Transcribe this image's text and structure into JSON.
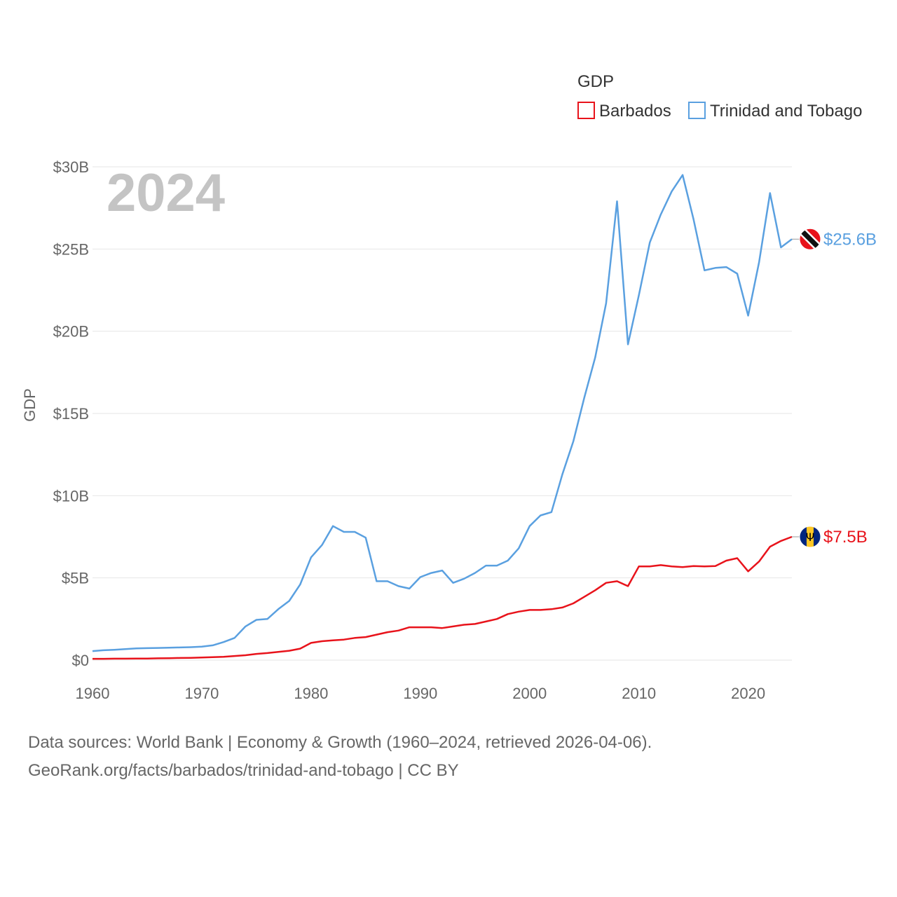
{
  "chart_data": {
    "type": "line",
    "title": "",
    "year_display": "2024",
    "legend_title": "GDP",
    "xlabel": "",
    "ylabel": "GDP",
    "xlim": [
      1960,
      2024
    ],
    "ylim": [
      0,
      30
    ],
    "x_ticks": [
      1960,
      1970,
      1980,
      1990,
      2000,
      2010,
      2020
    ],
    "y_ticks": [
      {
        "value": 0,
        "label": "$0"
      },
      {
        "value": 5,
        "label": "$5B"
      },
      {
        "value": 10,
        "label": "$10B"
      },
      {
        "value": 15,
        "label": "$15B"
      },
      {
        "value": 20,
        "label": "$20B"
      },
      {
        "value": 25,
        "label": "$25B"
      },
      {
        "value": 30,
        "label": "$30B"
      }
    ],
    "grid": true,
    "legend_position": "top-right",
    "units": "billions USD",
    "x": [
      1960,
      1961,
      1962,
      1963,
      1964,
      1965,
      1966,
      1967,
      1968,
      1969,
      1970,
      1971,
      1972,
      1973,
      1974,
      1975,
      1976,
      1977,
      1978,
      1979,
      1980,
      1981,
      1982,
      1983,
      1984,
      1985,
      1986,
      1987,
      1988,
      1989,
      1990,
      1991,
      1992,
      1993,
      1994,
      1995,
      1996,
      1997,
      1998,
      1999,
      2000,
      2001,
      2002,
      2003,
      2004,
      2005,
      2006,
      2007,
      2008,
      2009,
      2010,
      2011,
      2012,
      2013,
      2014,
      2015,
      2016,
      2017,
      2018,
      2019,
      2020,
      2021,
      2022,
      2023,
      2024
    ],
    "series": [
      {
        "name": "Barbados",
        "color": "#e8131b",
        "end_label": "$7.5B",
        "flag": "barbados-flag",
        "values": [
          0.08,
          0.08,
          0.09,
          0.09,
          0.1,
          0.1,
          0.11,
          0.12,
          0.13,
          0.14,
          0.16,
          0.18,
          0.2,
          0.25,
          0.3,
          0.38,
          0.43,
          0.5,
          0.57,
          0.7,
          1.05,
          1.15,
          1.2,
          1.25,
          1.35,
          1.4,
          1.55,
          1.7,
          1.8,
          2.0,
          2.0,
          2.0,
          1.95,
          2.05,
          2.15,
          2.2,
          2.35,
          2.5,
          2.8,
          2.95,
          3.05,
          3.05,
          3.1,
          3.2,
          3.45,
          3.85,
          4.25,
          4.7,
          4.8,
          4.5,
          5.7,
          5.7,
          5.78,
          5.7,
          5.66,
          5.72,
          5.7,
          5.72,
          6.05,
          6.2,
          5.4,
          6.0,
          6.9,
          7.25,
          7.5
        ]
      },
      {
        "name": "Trinidad and Tobago",
        "color": "#5aa0e0",
        "end_label": "$25.6B",
        "flag": "trinidad-and-tobago-flag",
        "values": [
          0.55,
          0.6,
          0.63,
          0.67,
          0.71,
          0.73,
          0.74,
          0.76,
          0.77,
          0.79,
          0.82,
          0.9,
          1.1,
          1.35,
          2.05,
          2.45,
          2.5,
          3.1,
          3.6,
          4.6,
          6.25,
          7.0,
          8.15,
          7.8,
          7.8,
          7.45,
          4.8,
          4.8,
          4.5,
          4.35,
          5.05,
          5.3,
          5.45,
          4.7,
          4.95,
          5.3,
          5.75,
          5.75,
          6.05,
          6.8,
          8.15,
          8.8,
          9.0,
          11.3,
          13.3,
          15.95,
          18.4,
          21.7,
          27.9,
          19.2,
          22.2,
          25.4,
          27.1,
          28.5,
          29.5,
          26.8,
          23.7,
          23.85,
          23.9,
          23.5,
          20.95,
          24.2,
          28.4,
          25.1,
          25.6
        ]
      }
    ]
  },
  "footer": {
    "line1": "Data sources: World Bank | Economy & Growth (1960–2024, retrieved 2026-04-06).",
    "line2": "GeoRank.org/facts/barbados/trinidad-and-tobago | CC BY"
  }
}
